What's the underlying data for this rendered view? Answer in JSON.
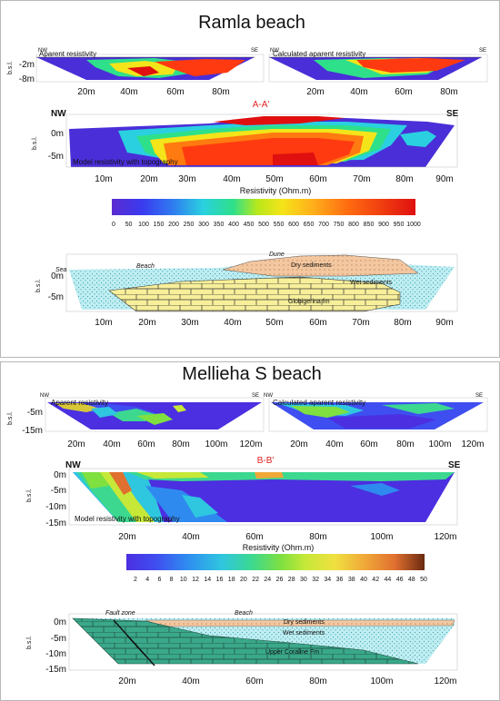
{
  "sites": [
    {
      "title": "Ramla beach",
      "apparent_label": "Aparent resistivity",
      "calculated_label": "Calculated aparent resistivity",
      "small_nw": "NW",
      "small_se": "SE",
      "small_yticks": [
        "-2m",
        "-8m"
      ],
      "small_xticks": [
        "20m",
        "40m",
        "60m",
        "80m"
      ],
      "section_label": "A-A'",
      "nw": "NW",
      "se": "SE",
      "yticks": [
        "0m",
        "-5m"
      ],
      "xticks": [
        "10m",
        "20m",
        "30m",
        "40m",
        "50m",
        "60m",
        "70m",
        "80m",
        "90m"
      ],
      "model_label": "Model resistivity with topography",
      "resistivity_title": "Resistivity (Ohm.m)",
      "colorbar_ticks": [
        "0",
        "50",
        "100",
        "150",
        "200",
        "250",
        "300",
        "350",
        "400",
        "450",
        "500",
        "550",
        "600",
        "650",
        "700",
        "750",
        "800",
        "850",
        "900",
        "950",
        "1000"
      ],
      "geo_yticks": [
        "0m",
        "-5m"
      ],
      "geo_xticks": [
        "10m",
        "20m",
        "30m",
        "40m",
        "50m",
        "60m",
        "70m",
        "80m",
        "90m"
      ],
      "geo_labels": {
        "sea": "Sea",
        "beach": "Beach",
        "dune": "Dune",
        "dry": "Dry sediments",
        "wet": "Wet sediments",
        "rock": "Globigerina fm"
      },
      "ylabel": "b.s.l."
    },
    {
      "title": "Mellieha S beach",
      "apparent_label": "Aparent resistivity",
      "calculated_label": "Calculated aparent resistivity",
      "small_nw": "NW",
      "small_se": "SE",
      "small_yticks": [
        "-5m",
        "-15m"
      ],
      "small_xticks": [
        "20m",
        "40m",
        "60m",
        "80m",
        "100m",
        "120m"
      ],
      "section_label": "B-B'",
      "nw": "NW",
      "se": "SE",
      "yticks": [
        "0m",
        "-5m",
        "-10m",
        "-15m"
      ],
      "xticks": [
        "20m",
        "40m",
        "60m",
        "80m",
        "100m",
        "120m"
      ],
      "model_label": "Model resistivity with topography",
      "resistivity_title": "Resistivity (Ohm.m)",
      "colorbar_ticks": [
        "2",
        "4",
        "6",
        "8",
        "10",
        "12",
        "14",
        "16",
        "18",
        "20",
        "22",
        "24",
        "26",
        "28",
        "30",
        "32",
        "34",
        "36",
        "38",
        "40",
        "42",
        "44",
        "46",
        "48",
        "50"
      ],
      "geo_yticks": [
        "0m",
        "-5m",
        "-10m",
        "-15m"
      ],
      "geo_xticks": [
        "20m",
        "40m",
        "60m",
        "80m",
        "100m",
        "120m"
      ],
      "geo_labels": {
        "fault": "Fault zone",
        "beach": "Beach",
        "dry": "Dry sediments",
        "wet": "Wet sediments",
        "rock": "Upper Coraline Fm"
      },
      "ylabel": "b.s.l."
    }
  ],
  "colors": {
    "ramla_scale": [
      "#5a2bd0",
      "#3a3af0",
      "#2f7bf0",
      "#2ad0e0",
      "#2ee08a",
      "#5fe02a",
      "#b8e81a",
      "#f4e41a",
      "#ffb01a",
      "#ff6a10",
      "#ff2a10",
      "#e01010"
    ],
    "mellieha_scale": [
      "#4b2fe0",
      "#3f4ef0",
      "#2f8af0",
      "#2fc6e0",
      "#3cd890",
      "#7fe040",
      "#c6e838",
      "#f0e040",
      "#f0a838",
      "#e07030",
      "#b8582a",
      "#6a2a10"
    ],
    "sand": "#bfeef2",
    "dry": "#f3c7a0",
    "globigerina": "#f7ef9a",
    "coraline": "#3aa88a"
  }
}
